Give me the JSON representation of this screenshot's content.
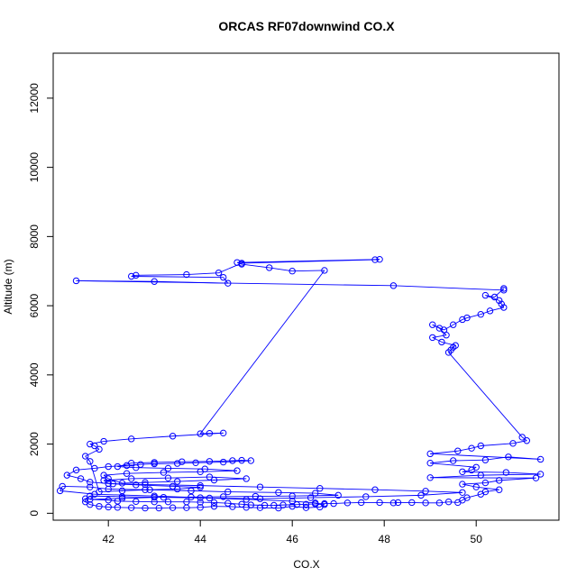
{
  "chart_data": {
    "type": "line",
    "title": "ORCAS RF07downwind CO.X",
    "xlabel": "CO.X",
    "ylabel": "Altitude (m)",
    "xlim": [
      40.8,
      51.8
    ],
    "ylim": [
      -200,
      13300
    ],
    "x_ticks": [
      42,
      44,
      46,
      48,
      50
    ],
    "y_ticks": [
      0,
      2000,
      4000,
      6000,
      8000,
      10000,
      12000
    ],
    "grid": false,
    "legend": "none",
    "series": [
      {
        "color": "#0000ff",
        "marker": "open-circle",
        "line": true,
        "points": [
          [
            50.6,
            6500
          ],
          [
            50.4,
            6250
          ],
          [
            50.2,
            6300
          ],
          [
            50.5,
            6150
          ],
          [
            50.55,
            6050
          ],
          [
            50.6,
            5950
          ],
          [
            50.3,
            5850
          ],
          [
            50.1,
            5750
          ],
          [
            49.8,
            5650
          ],
          [
            49.7,
            5600
          ],
          [
            49.5,
            5450
          ],
          [
            49.3,
            5300
          ],
          [
            49.05,
            5450
          ],
          [
            49.2,
            5350
          ],
          [
            49.35,
            5150
          ],
          [
            49.05,
            5080
          ],
          [
            49.25,
            4950
          ],
          [
            49.55,
            4850
          ],
          [
            49.5,
            4800
          ],
          [
            49.45,
            4720
          ],
          [
            49.4,
            4650
          ],
          [
            51.0,
            2200
          ],
          [
            51.1,
            2100
          ],
          [
            50.8,
            2020
          ],
          [
            50.1,
            1950
          ],
          [
            49.9,
            1880
          ],
          [
            49.6,
            1800
          ],
          [
            49.0,
            1720
          ],
          [
            51.4,
            1560
          ],
          [
            50.7,
            1630
          ],
          [
            50.2,
            1540
          ],
          [
            49.5,
            1520
          ],
          [
            49.0,
            1450
          ],
          [
            50.0,
            1330
          ],
          [
            49.9,
            1250
          ],
          [
            49.7,
            1200
          ],
          [
            50.65,
            1180
          ],
          [
            51.4,
            1130
          ],
          [
            50.1,
            1100
          ],
          [
            49.0,
            1030
          ],
          [
            51.3,
            1020
          ],
          [
            50.5,
            950
          ],
          [
            50.2,
            880
          ],
          [
            49.7,
            840
          ],
          [
            50.0,
            760
          ],
          [
            50.5,
            680
          ],
          [
            50.2,
            620
          ],
          [
            50.1,
            550
          ],
          [
            49.8,
            450
          ],
          [
            49.7,
            380
          ],
          [
            49.6,
            310
          ],
          [
            49.4,
            330
          ],
          [
            49.2,
            300
          ],
          [
            48.9,
            300
          ],
          [
            48.6,
            310
          ],
          [
            48.3,
            310
          ],
          [
            48.2,
            300
          ],
          [
            47.9,
            310
          ],
          [
            47.5,
            310
          ],
          [
            47.2,
            300
          ],
          [
            46.9,
            280
          ],
          [
            46.7,
            280
          ],
          [
            46.5,
            270
          ],
          [
            46.3,
            260
          ],
          [
            46.1,
            250
          ],
          [
            45.8,
            240
          ],
          [
            45.6,
            230
          ],
          [
            45.4,
            230
          ],
          [
            45.1,
            240
          ],
          [
            44.9,
            260
          ],
          [
            44.6,
            290
          ],
          [
            44.3,
            310
          ],
          [
            44.0,
            320
          ],
          [
            43.7,
            330
          ],
          [
            43.3,
            330
          ],
          [
            43.0,
            330
          ],
          [
            42.6,
            340
          ],
          [
            42.2,
            350
          ],
          [
            42.0,
            380
          ],
          [
            41.6,
            400
          ],
          [
            42.3,
            430
          ],
          [
            43.0,
            460
          ],
          [
            43.8,
            470
          ],
          [
            44.5,
            480
          ],
          [
            45.2,
            490
          ],
          [
            46.0,
            500
          ],
          [
            47.0,
            520
          ],
          [
            46.5,
            580
          ],
          [
            45.7,
            600
          ],
          [
            44.6,
            620
          ],
          [
            43.8,
            650
          ],
          [
            42.8,
            680
          ],
          [
            42.0,
            700
          ],
          [
            41.6,
            760
          ],
          [
            41.0,
            780
          ],
          [
            40.95,
            650
          ],
          [
            41.7,
            550
          ],
          [
            43.0,
            500
          ],
          [
            44.0,
            450
          ],
          [
            45.0,
            400
          ],
          [
            46.0,
            350
          ],
          [
            46.5,
            300
          ],
          [
            46.7,
            250
          ],
          [
            46.6,
            180
          ],
          [
            46.3,
            160
          ],
          [
            46.0,
            200
          ],
          [
            45.7,
            150
          ],
          [
            45.3,
            160
          ],
          [
            45.0,
            170
          ],
          [
            44.7,
            190
          ],
          [
            44.3,
            200
          ],
          [
            44.0,
            170
          ],
          [
            43.7,
            160
          ],
          [
            43.4,
            160
          ],
          [
            43.1,
            150
          ],
          [
            42.8,
            150
          ],
          [
            42.5,
            160
          ],
          [
            42.2,
            170
          ],
          [
            42.0,
            180
          ],
          [
            41.8,
            200
          ],
          [
            41.6,
            250
          ],
          [
            41.5,
            330
          ],
          [
            41.5,
            420
          ],
          [
            41.6,
            500
          ],
          [
            42.3,
            480
          ],
          [
            43.2,
            460
          ],
          [
            44.2,
            440
          ],
          [
            45.3,
            420
          ],
          [
            46.4,
            450
          ],
          [
            47.6,
            480
          ],
          [
            48.8,
            520
          ],
          [
            49.7,
            600
          ],
          [
            48.9,
            640
          ],
          [
            47.8,
            680
          ],
          [
            46.6,
            720
          ],
          [
            45.3,
            760
          ],
          [
            44.0,
            800
          ],
          [
            42.8,
            830
          ],
          [
            42.0,
            860
          ],
          [
            41.9,
            950
          ],
          [
            42.5,
            1000
          ],
          [
            43.3,
            1020
          ],
          [
            44.2,
            1050
          ],
          [
            45.0,
            1000
          ],
          [
            44.3,
            960
          ],
          [
            43.5,
            920
          ],
          [
            42.8,
            890
          ],
          [
            42.3,
            870
          ],
          [
            42.0,
            1000
          ],
          [
            41.9,
            1100
          ],
          [
            42.4,
            1150
          ],
          [
            43.2,
            1180
          ],
          [
            44.0,
            1200
          ],
          [
            44.8,
            1230
          ],
          [
            44.1,
            1280
          ],
          [
            43.3,
            1300
          ],
          [
            42.6,
            1320
          ],
          [
            42.2,
            1350
          ],
          [
            42.5,
            1450
          ],
          [
            43.0,
            1470
          ],
          [
            43.6,
            1490
          ],
          [
            44.2,
            1500
          ],
          [
            44.7,
            1520
          ],
          [
            44.9,
            1530
          ],
          [
            45.1,
            1520
          ],
          [
            44.5,
            1480
          ],
          [
            43.9,
            1460
          ],
          [
            43.5,
            1440
          ],
          [
            43.0,
            1430
          ],
          [
            42.7,
            1410
          ],
          [
            42.4,
            1380
          ],
          [
            42.0,
            1350
          ],
          [
            41.7,
            1300
          ],
          [
            41.3,
            1250
          ],
          [
            41.1,
            1100
          ],
          [
            41.4,
            1000
          ],
          [
            41.6,
            900
          ],
          [
            42.1,
            850
          ],
          [
            42.6,
            820
          ],
          [
            43.4,
            780
          ],
          [
            44.0,
            750
          ],
          [
            43.5,
            700
          ],
          [
            42.9,
            680
          ],
          [
            42.3,
            650
          ],
          [
            41.8,
            620
          ],
          [
            41.6,
            1500
          ],
          [
            41.5,
            1650
          ],
          [
            41.8,
            1850
          ],
          [
            41.7,
            1950
          ],
          [
            41.6,
            2000
          ],
          [
            41.9,
            2080
          ],
          [
            42.5,
            2150
          ],
          [
            43.4,
            2230
          ],
          [
            44.5,
            2320
          ],
          [
            44.2,
            2310
          ],
          [
            44.0,
            2300
          ],
          [
            46.7,
            7020
          ],
          [
            46.0,
            7000
          ],
          [
            45.5,
            7100
          ],
          [
            44.9,
            7200
          ],
          [
            44.8,
            7250
          ],
          [
            47.9,
            7340
          ],
          [
            47.8,
            7330
          ],
          [
            44.9,
            7230
          ],
          [
            44.4,
            6950
          ],
          [
            43.7,
            6900
          ],
          [
            42.6,
            6880
          ],
          [
            42.5,
            6850
          ],
          [
            44.5,
            6820
          ],
          [
            44.6,
            6650
          ],
          [
            43.0,
            6700
          ],
          [
            41.3,
            6720
          ],
          [
            48.2,
            6580
          ],
          [
            50.6,
            6450
          ]
        ]
      }
    ]
  }
}
